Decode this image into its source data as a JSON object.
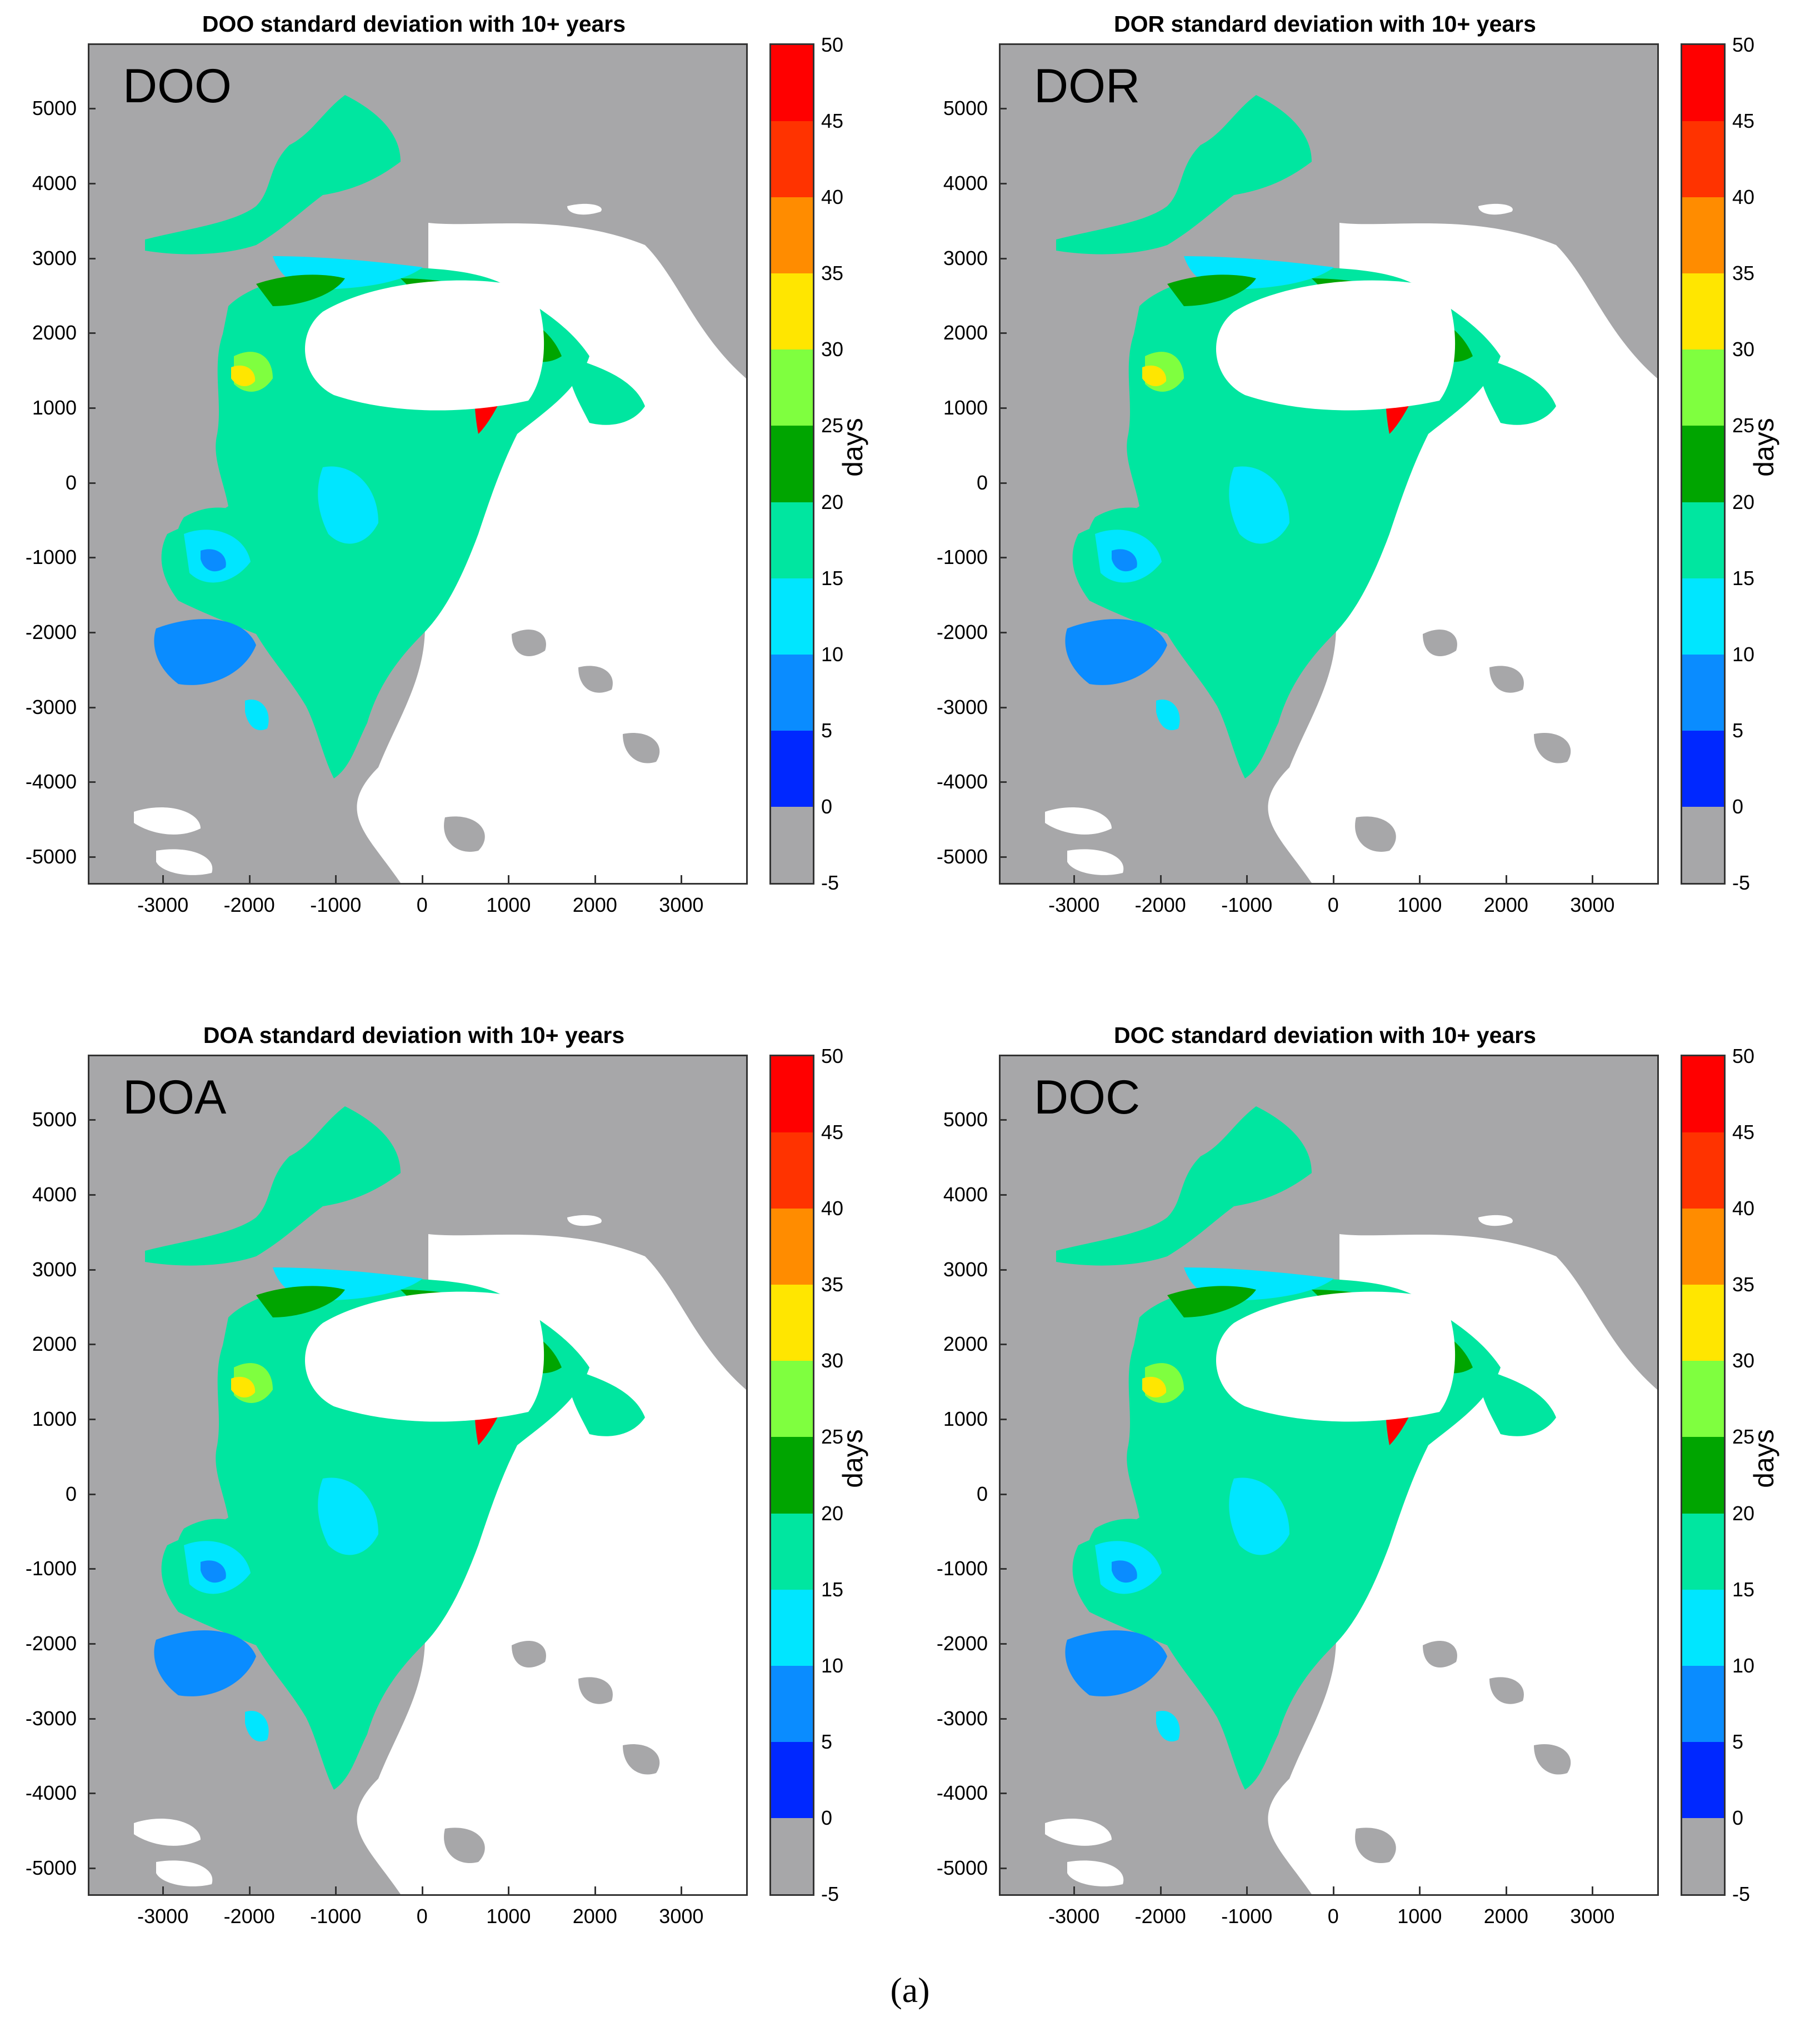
{
  "colorbar": {
    "label": "days",
    "ticks": [
      "50",
      "45",
      "40",
      "35",
      "30",
      "25",
      "20",
      "15",
      "10",
      "5",
      "0",
      "-5"
    ],
    "colors": [
      "#ff0000",
      "#ff3300",
      "#ff8c00",
      "#ffe600",
      "#7fff3f",
      "#00a500",
      "#00e6a0",
      "#00e6ff",
      "#0a8cff",
      "#0028ff",
      "#a7a7a9"
    ]
  },
  "axes": {
    "y_ticks": [
      "5000",
      "4000",
      "3000",
      "2000",
      "1000",
      "0",
      "-1000",
      "-2000",
      "-3000",
      "-4000",
      "-5000"
    ],
    "x_ticks": [
      "-3000",
      "-2000",
      "-1000",
      "0",
      "1000",
      "2000",
      "3000"
    ]
  },
  "land_color": "#a7a7a9",
  "panels": [
    {
      "title": "DOO standard deviation with 10+ years",
      "label": "DOO"
    },
    {
      "title": "DOR standard deviation with 10+ years",
      "label": "DOR"
    },
    {
      "title": "DOA standard deviation with 10+ years",
      "label": "DOA"
    },
    {
      "title": "DOC standard deviation with 10+ years",
      "label": "DOC"
    }
  ],
  "caption": "(a)"
}
